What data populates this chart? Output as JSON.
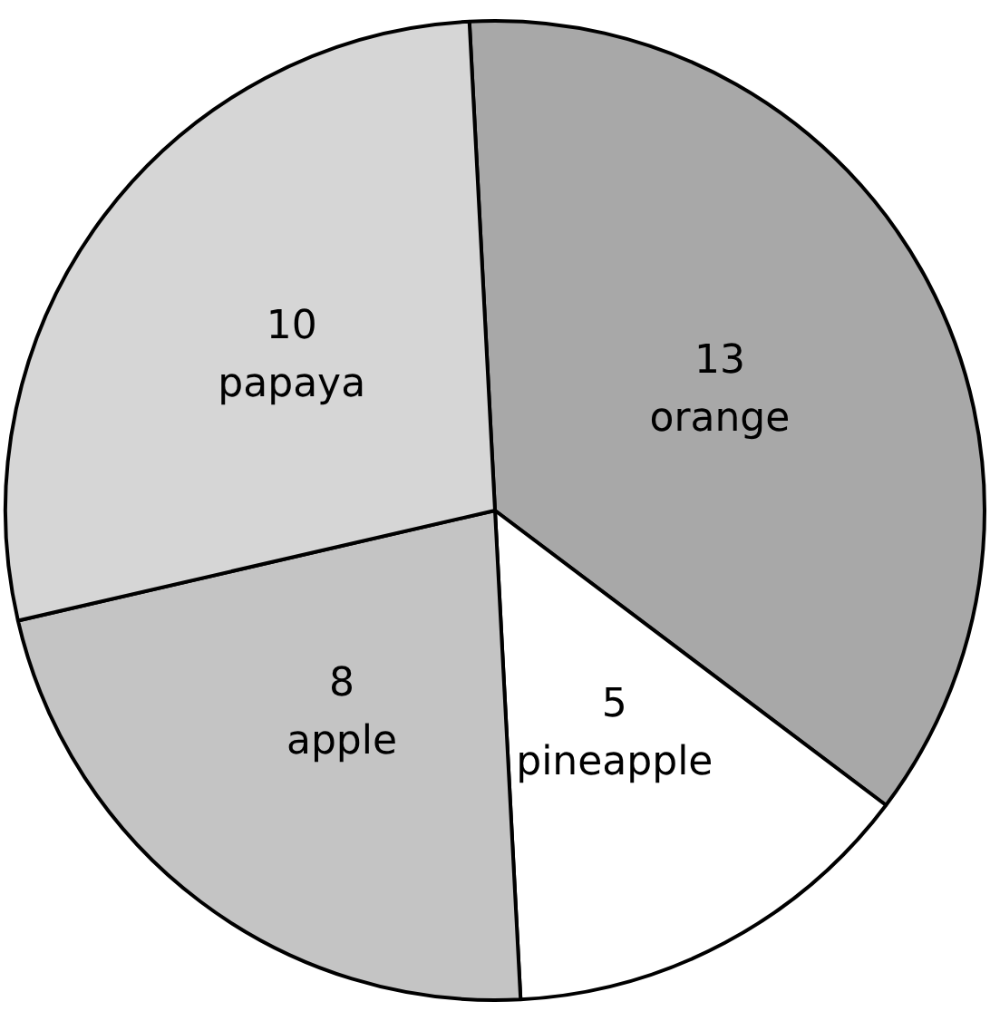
{
  "chart_data": {
    "type": "pie",
    "categories": [
      "orange",
      "pineapple",
      "apple",
      "papaya"
    ],
    "values": [
      13,
      5,
      8,
      10
    ],
    "colors": [
      "#a8a8a8",
      "#ffffff",
      "#c4c4c4",
      "#d6d6d6"
    ],
    "data_labels": true,
    "legend": false
  }
}
